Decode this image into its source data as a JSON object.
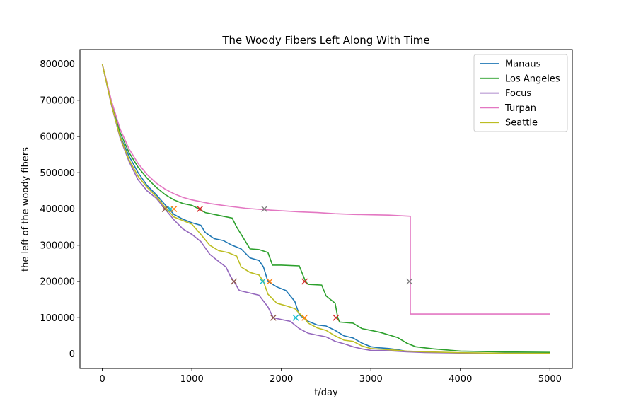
{
  "chart_data": {
    "type": "line",
    "title": "The Woody Fibers Left Along With Time",
    "xlabel": "t/day",
    "ylabel": "the left of the woody fibers",
    "xlim": [
      -250,
      5250
    ],
    "ylim": [
      -40000,
      840000
    ],
    "xticks": [
      0,
      1000,
      2000,
      3000,
      4000,
      5000
    ],
    "xtick_labels": [
      "0",
      "1000",
      "2000",
      "3000",
      "4000",
      "5000"
    ],
    "yticks": [
      0,
      100000,
      200000,
      300000,
      400000,
      500000,
      600000,
      700000,
      800000
    ],
    "ytick_labels": [
      "0",
      "100000",
      "200000",
      "300000",
      "400000",
      "500000",
      "600000",
      "700000",
      "800000"
    ],
    "grid": false,
    "legend_position": "top-right",
    "series": [
      {
        "name": "Manaus",
        "color": "#1f77b4",
        "points": [
          [
            0,
            800000
          ],
          [
            100,
            690000
          ],
          [
            200,
            600000
          ],
          [
            300,
            545000
          ],
          [
            400,
            500000
          ],
          [
            500,
            465000
          ],
          [
            600,
            440000
          ],
          [
            700,
            412000
          ],
          [
            800,
            385000
          ],
          [
            900,
            372000
          ],
          [
            1000,
            362000
          ],
          [
            1100,
            355000
          ],
          [
            1150,
            335000
          ],
          [
            1250,
            318000
          ],
          [
            1350,
            313000
          ],
          [
            1450,
            300000
          ],
          [
            1550,
            290000
          ],
          [
            1650,
            265000
          ],
          [
            1750,
            258000
          ],
          [
            1800,
            240000
          ],
          [
            1850,
            200000
          ],
          [
            1950,
            185000
          ],
          [
            2050,
            175000
          ],
          [
            2150,
            145000
          ],
          [
            2200,
            108000
          ],
          [
            2300,
            90000
          ],
          [
            2400,
            80000
          ],
          [
            2500,
            77000
          ],
          [
            2600,
            65000
          ],
          [
            2700,
            50000
          ],
          [
            2800,
            44000
          ],
          [
            2900,
            30000
          ],
          [
            3000,
            20000
          ],
          [
            3100,
            17000
          ],
          [
            3200,
            15000
          ],
          [
            3300,
            12000
          ],
          [
            3400,
            7000
          ],
          [
            3600,
            5000
          ],
          [
            3800,
            4000
          ],
          [
            4000,
            3000
          ],
          [
            4500,
            2000
          ],
          [
            5000,
            1500
          ]
        ]
      },
      {
        "name": "Los Angeles",
        "color": "#2ca02c",
        "points": [
          [
            0,
            800000
          ],
          [
            100,
            695000
          ],
          [
            200,
            610000
          ],
          [
            300,
            555000
          ],
          [
            400,
            515000
          ],
          [
            500,
            485000
          ],
          [
            600,
            460000
          ],
          [
            700,
            440000
          ],
          [
            800,
            425000
          ],
          [
            900,
            415000
          ],
          [
            1000,
            410000
          ],
          [
            1080,
            400000
          ],
          [
            1150,
            390000
          ],
          [
            1250,
            385000
          ],
          [
            1350,
            380000
          ],
          [
            1450,
            375000
          ],
          [
            1500,
            350000
          ],
          [
            1600,
            310000
          ],
          [
            1650,
            290000
          ],
          [
            1750,
            288000
          ],
          [
            1850,
            280000
          ],
          [
            1900,
            245000
          ],
          [
            2000,
            245000
          ],
          [
            2200,
            243000
          ],
          [
            2270,
            200000
          ],
          [
            2300,
            192000
          ],
          [
            2450,
            190000
          ],
          [
            2500,
            160000
          ],
          [
            2600,
            140000
          ],
          [
            2630,
            100000
          ],
          [
            2650,
            88000
          ],
          [
            2800,
            85000
          ],
          [
            2900,
            70000
          ],
          [
            3000,
            65000
          ],
          [
            3100,
            60000
          ],
          [
            3300,
            45000
          ],
          [
            3400,
            30000
          ],
          [
            3500,
            20000
          ],
          [
            3700,
            14000
          ],
          [
            3900,
            10000
          ],
          [
            4000,
            8000
          ],
          [
            4200,
            7000
          ],
          [
            4500,
            5500
          ],
          [
            5000,
            4500
          ]
        ]
      },
      {
        "name": "Focus",
        "color": "#9467bd",
        "points": [
          [
            0,
            800000
          ],
          [
            100,
            688000
          ],
          [
            200,
            595000
          ],
          [
            300,
            530000
          ],
          [
            400,
            480000
          ],
          [
            500,
            450000
          ],
          [
            600,
            430000
          ],
          [
            700,
            400000
          ],
          [
            800,
            370000
          ],
          [
            900,
            345000
          ],
          [
            1000,
            330000
          ],
          [
            1100,
            310000
          ],
          [
            1200,
            275000
          ],
          [
            1300,
            255000
          ],
          [
            1380,
            240000
          ],
          [
            1430,
            215000
          ],
          [
            1470,
            200000
          ],
          [
            1530,
            175000
          ],
          [
            1650,
            168000
          ],
          [
            1750,
            162000
          ],
          [
            1850,
            130000
          ],
          [
            1910,
            100000
          ],
          [
            2000,
            95000
          ],
          [
            2100,
            90000
          ],
          [
            2200,
            70000
          ],
          [
            2300,
            57000
          ],
          [
            2400,
            52000
          ],
          [
            2500,
            47000
          ],
          [
            2600,
            35000
          ],
          [
            2700,
            28000
          ],
          [
            2800,
            20000
          ],
          [
            2900,
            14000
          ],
          [
            3000,
            10000
          ],
          [
            3200,
            9000
          ],
          [
            3400,
            6000
          ],
          [
            3600,
            4000
          ],
          [
            4000,
            2500
          ],
          [
            4500,
            1500
          ],
          [
            5000,
            1000
          ]
        ]
      },
      {
        "name": "Turpan",
        "color": "#e377c2",
        "points": [
          [
            0,
            800000
          ],
          [
            100,
            700000
          ],
          [
            200,
            620000
          ],
          [
            300,
            565000
          ],
          [
            400,
            525000
          ],
          [
            500,
            495000
          ],
          [
            600,
            472000
          ],
          [
            700,
            455000
          ],
          [
            800,
            442000
          ],
          [
            900,
            432000
          ],
          [
            1000,
            425000
          ],
          [
            1200,
            415000
          ],
          [
            1400,
            408000
          ],
          [
            1600,
            402000
          ],
          [
            1800,
            398000
          ],
          [
            2000,
            395000
          ],
          [
            2200,
            392000
          ],
          [
            2400,
            390000
          ],
          [
            2600,
            387000
          ],
          [
            2800,
            385000
          ],
          [
            3000,
            384000
          ],
          [
            3200,
            383000
          ],
          [
            3440,
            380000
          ],
          [
            3440,
            110000
          ],
          [
            4000,
            110000
          ],
          [
            4500,
            110000
          ],
          [
            5000,
            110000
          ]
        ]
      },
      {
        "name": "Seattle",
        "color": "#bcbd22",
        "points": [
          [
            0,
            800000
          ],
          [
            100,
            690000
          ],
          [
            200,
            598000
          ],
          [
            300,
            535000
          ],
          [
            400,
            490000
          ],
          [
            500,
            460000
          ],
          [
            600,
            435000
          ],
          [
            700,
            405000
          ],
          [
            800,
            378000
          ],
          [
            900,
            368000
          ],
          [
            1000,
            358000
          ],
          [
            1100,
            330000
          ],
          [
            1200,
            300000
          ],
          [
            1300,
            285000
          ],
          [
            1400,
            280000
          ],
          [
            1500,
            270000
          ],
          [
            1550,
            240000
          ],
          [
            1650,
            225000
          ],
          [
            1750,
            218000
          ],
          [
            1800,
            200000
          ],
          [
            1850,
            165000
          ],
          [
            1950,
            140000
          ],
          [
            2050,
            133000
          ],
          [
            2150,
            125000
          ],
          [
            2250,
            100000
          ],
          [
            2300,
            85000
          ],
          [
            2400,
            72000
          ],
          [
            2500,
            65000
          ],
          [
            2600,
            50000
          ],
          [
            2700,
            38000
          ],
          [
            2800,
            35000
          ],
          [
            2900,
            22000
          ],
          [
            3000,
            15000
          ],
          [
            3200,
            12000
          ],
          [
            3400,
            8000
          ],
          [
            3600,
            6000
          ],
          [
            4000,
            3500
          ],
          [
            4500,
            2000
          ],
          [
            5000,
            1500
          ]
        ]
      }
    ],
    "markers": [
      {
        "x": 700,
        "y": 400000,
        "color": "#8c564b"
      },
      {
        "x": 760,
        "y": 400000,
        "color": "#17becf"
      },
      {
        "x": 800,
        "y": 400000,
        "color": "#ff7f0e"
      },
      {
        "x": 1090,
        "y": 400000,
        "color": "#d62728"
      },
      {
        "x": 1810,
        "y": 400000,
        "color": "#7f7f7f"
      },
      {
        "x": 1470,
        "y": 200000,
        "color": "#8c564b"
      },
      {
        "x": 1790,
        "y": 200000,
        "color": "#17becf"
      },
      {
        "x": 1870,
        "y": 200000,
        "color": "#ff7f0e"
      },
      {
        "x": 2260,
        "y": 200000,
        "color": "#d62728"
      },
      {
        "x": 3430,
        "y": 200000,
        "color": "#7f7f7f"
      },
      {
        "x": 1910,
        "y": 100000,
        "color": "#8c564b"
      },
      {
        "x": 2160,
        "y": 100000,
        "color": "#17becf"
      },
      {
        "x": 2260,
        "y": 100000,
        "color": "#ff7f0e"
      },
      {
        "x": 2610,
        "y": 100000,
        "color": "#d62728"
      }
    ]
  }
}
